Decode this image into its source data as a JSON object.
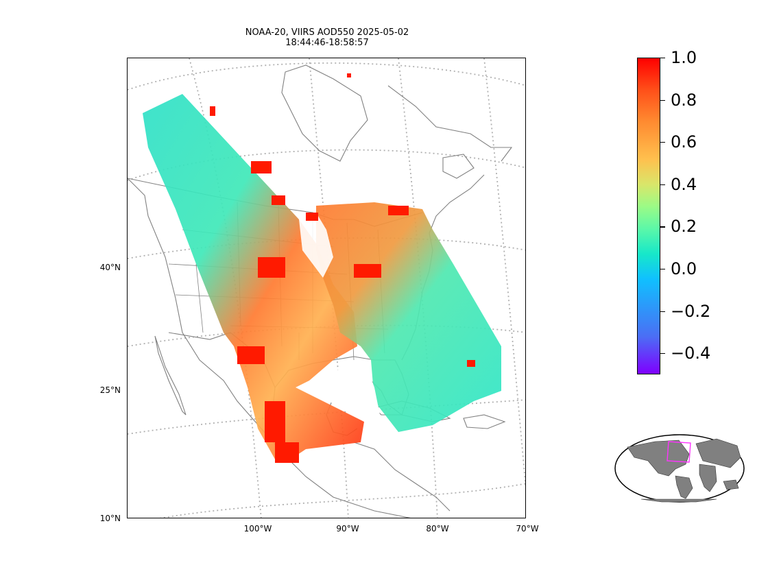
{
  "title": {
    "line1": "NOAA-20, VIIRS AOD550 2025-05-02",
    "line2": "18:44:46-18:58:57"
  },
  "map": {
    "lat_labels": [
      "40°N",
      "25°N",
      "10°N"
    ],
    "lon_labels": [
      "100°W",
      "90°W",
      "80°W",
      "70°W"
    ],
    "gridline_style": "dotted gray",
    "coastline_color": "#808080"
  },
  "colorbar": {
    "ticks": [
      "1.0",
      "0.8",
      "0.6",
      "0.4",
      "0.2",
      "0.0",
      "−0.2",
      "−0.4"
    ],
    "min": -0.5,
    "max": 1.0,
    "colormap": "rainbow"
  },
  "inset": {
    "description_icon": "globe-inset-icon",
    "land_color": "#808080",
    "box_color": "#ff33ff"
  },
  "chart_data": {
    "type": "heatmap",
    "title": "NOAA-20, VIIRS AOD550 2025-05-02 18:44:46-18:58:57",
    "variable": "AOD550",
    "value_range": [
      -0.5,
      1.0
    ],
    "lat_ticks": [
      "40°N",
      "25°N",
      "10°N"
    ],
    "lon_ticks": [
      "100°W",
      "90°W",
      "80°W",
      "70°W"
    ]
  }
}
